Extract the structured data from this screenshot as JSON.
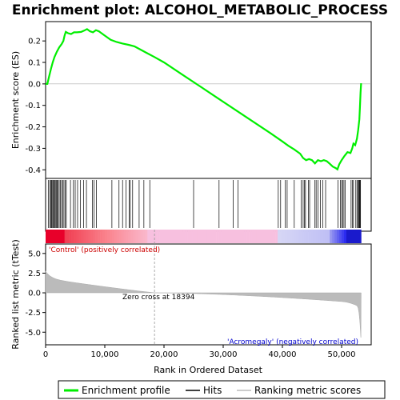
{
  "chart_data": {
    "type": "line",
    "title": "Enrichment plot: ALCOHOL_METABOLIC_PROCESS",
    "xlabel": "Rank in Ordered Dataset",
    "ylabel_top": "Enrichment score (ES)",
    "ylabel_bottom": "Ranked list metric (tTest)",
    "x_range": [
      0,
      55000
    ],
    "x_ticks": [
      0,
      10000,
      20000,
      30000,
      40000,
      50000
    ],
    "x_tick_labels": [
      "0",
      "10,000",
      "20,000",
      "30,000",
      "40,000",
      "50,000"
    ],
    "es_range": [
      -0.44,
      0.29
    ],
    "es_ticks": [
      0.2,
      0.1,
      0.0,
      -0.1,
      -0.2,
      -0.3,
      -0.4
    ],
    "es_tick_labels": [
      "0.2",
      "0.1",
      "0.0",
      "-0.1",
      "-0.2",
      "-0.3",
      "-0.4"
    ],
    "metric_range": [
      -6.6,
      6.2
    ],
    "metric_ticks": [
      5.0,
      2.5,
      0.0,
      -2.5,
      -5.0
    ],
    "metric_tick_labels": [
      "5.0",
      "2.5",
      "0.0",
      "-2.5",
      "-5.0"
    ],
    "annotations": {
      "positive": "'Control' (positively correlated)",
      "negative": "'Acromegaly' (negatively correlated)",
      "zero_cross": "Zero cross at 18394"
    },
    "zero_cross": 18394,
    "n_genes": 53300,
    "es_curve": [
      [
        0,
        0
      ],
      [
        300,
        0.0
      ],
      [
        600,
        0.035
      ],
      [
        900,
        0.07
      ],
      [
        1200,
        0.1
      ],
      [
        1500,
        0.125
      ],
      [
        1900,
        0.15
      ],
      [
        2300,
        0.17
      ],
      [
        2700,
        0.185
      ],
      [
        3000,
        0.2
      ],
      [
        3200,
        0.225
      ],
      [
        3400,
        0.242
      ],
      [
        3800,
        0.236
      ],
      [
        4300,
        0.232
      ],
      [
        4800,
        0.24
      ],
      [
        5300,
        0.24
      ],
      [
        6000,
        0.242
      ],
      [
        6500,
        0.248
      ],
      [
        7000,
        0.255
      ],
      [
        7500,
        0.245
      ],
      [
        8000,
        0.24
      ],
      [
        8500,
        0.25
      ],
      [
        9000,
        0.245
      ],
      [
        10000,
        0.225
      ],
      [
        11000,
        0.205
      ],
      [
        12000,
        0.195
      ],
      [
        13000,
        0.188
      ],
      [
        14000,
        0.182
      ],
      [
        15000,
        0.175
      ],
      [
        16000,
        0.16
      ],
      [
        17000,
        0.145
      ],
      [
        18394,
        0.125
      ],
      [
        20000,
        0.1
      ],
      [
        23000,
        0.045
      ],
      [
        26000,
        -0.01
      ],
      [
        29000,
        -0.065
      ],
      [
        32000,
        -0.12
      ],
      [
        35000,
        -0.175
      ],
      [
        38000,
        -0.23
      ],
      [
        40000,
        -0.268
      ],
      [
        41000,
        -0.288
      ],
      [
        42000,
        -0.305
      ],
      [
        43000,
        -0.325
      ],
      [
        43500,
        -0.345
      ],
      [
        44000,
        -0.355
      ],
      [
        44500,
        -0.35
      ],
      [
        45000,
        -0.355
      ],
      [
        45500,
        -0.37
      ],
      [
        46000,
        -0.355
      ],
      [
        46500,
        -0.36
      ],
      [
        47000,
        -0.355
      ],
      [
        47500,
        -0.36
      ],
      [
        48000,
        -0.372
      ],
      [
        48500,
        -0.385
      ],
      [
        49000,
        -0.392
      ],
      [
        49300,
        -0.398
      ],
      [
        49600,
        -0.375
      ],
      [
        50000,
        -0.355
      ],
      [
        50500,
        -0.335
      ],
      [
        51000,
        -0.318
      ],
      [
        51500,
        -0.322
      ],
      [
        51800,
        -0.3
      ],
      [
        52000,
        -0.278
      ],
      [
        52300,
        -0.285
      ],
      [
        52600,
        -0.255
      ],
      [
        52800,
        -0.215
      ],
      [
        53000,
        -0.165
      ],
      [
        53100,
        -0.11
      ],
      [
        53200,
        -0.04
      ],
      [
        53300,
        0.003
      ]
    ],
    "hits": [
      450,
      700,
      850,
      1000,
      1100,
      1250,
      1400,
      1500,
      1650,
      1800,
      1950,
      2100,
      2300,
      2500,
      2700,
      2900,
      3100,
      3300,
      3500,
      4200,
      4700,
      5000,
      5400,
      5900,
      6400,
      6900,
      7900,
      8200,
      8600,
      11200,
      12400,
      13000,
      13600,
      14100,
      14300,
      14700,
      15800,
      16600,
      17600,
      25000,
      29300,
      31700,
      32500,
      39300,
      39700,
      40500,
      40800,
      42000,
      43200,
      43500,
      43700,
      43900,
      44400,
      44600,
      45500,
      45700,
      46000,
      46400,
      46800,
      47300,
      49400,
      49800,
      50000,
      50200,
      50400,
      50600,
      51600,
      51800,
      52000,
      52400,
      52600,
      52800,
      52900,
      53000,
      53100,
      53200
    ]
  }
}
